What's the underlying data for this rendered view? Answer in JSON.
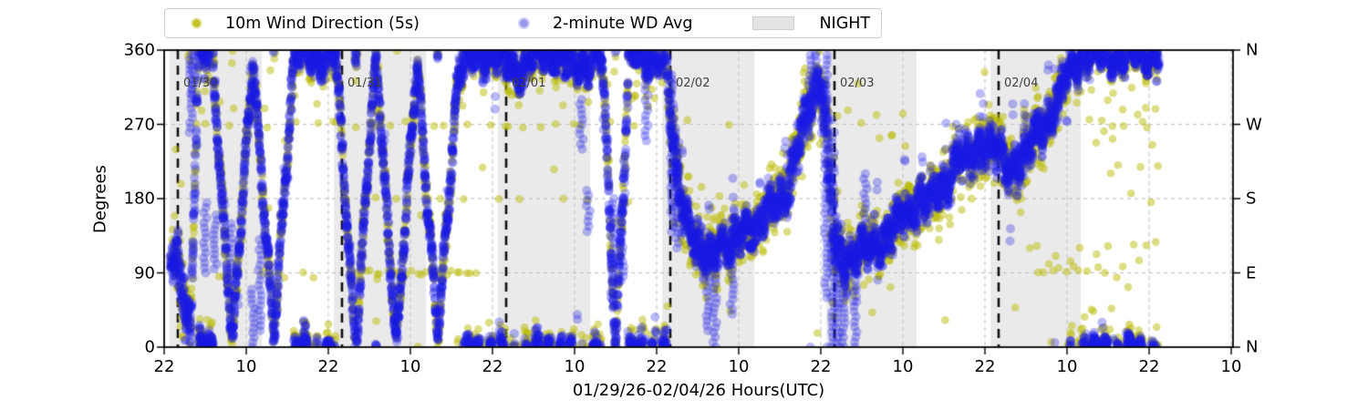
{
  "ui": {
    "legend": {
      "items": [
        {
          "label": "10m Wind Direction (5s)",
          "marker": "dot-icon",
          "color": "#c3c32a"
        },
        {
          "label": "2-minute WD Avg",
          "marker": "dot-icon",
          "color": "#9a9aea"
        },
        {
          "label": "NIGHT",
          "marker": "patch-icon",
          "color": "#e4e4e4"
        }
      ]
    }
  },
  "chart_data": {
    "type": "scatter",
    "title": "",
    "xlabel": "01/29/26-02/04/26  Hours(UTC)",
    "ylabel": "Degrees",
    "ylim": [
      0,
      360
    ],
    "xlim_hours": [
      0,
      156.3
    ],
    "grid": true,
    "legend_position": "top",
    "yticks": [
      {
        "deg": 0,
        "label": "0",
        "compass": "N"
      },
      {
        "deg": 90,
        "label": "90",
        "compass": "E"
      },
      {
        "deg": 180,
        "label": "180",
        "compass": "S"
      },
      {
        "deg": 270,
        "label": "270",
        "compass": "W"
      },
      {
        "deg": 360,
        "label": "360",
        "compass": "N"
      }
    ],
    "xticks": [
      {
        "h": 0,
        "label": "22"
      },
      {
        "h": 12,
        "label": "10"
      },
      {
        "h": 24,
        "label": "22"
      },
      {
        "h": 36,
        "label": "10"
      },
      {
        "h": 48,
        "label": "22"
      },
      {
        "h": 60,
        "label": "10"
      },
      {
        "h": 72,
        "label": "22"
      },
      {
        "h": 84,
        "label": "10"
      },
      {
        "h": 96,
        "label": "22"
      },
      {
        "h": 108,
        "label": "10"
      },
      {
        "h": 120,
        "label": "22"
      },
      {
        "h": 132,
        "label": "10"
      },
      {
        "h": 144,
        "label": "22"
      },
      {
        "h": 156,
        "label": "10"
      }
    ],
    "day_lines": [
      {
        "h": 2,
        "label": "01/30"
      },
      {
        "h": 26,
        "label": "01/31"
      },
      {
        "h": 50,
        "label": "02/01"
      },
      {
        "h": 74,
        "label": "02/02"
      },
      {
        "h": 98,
        "label": "02/03"
      },
      {
        "h": 122,
        "label": "02/04"
      }
    ],
    "night_bands_h": [
      [
        0.8,
        14.3
      ],
      [
        24.8,
        38.3
      ],
      [
        48.8,
        62.3
      ],
      [
        72.8,
        86.3
      ],
      [
        96.8,
        110.0
      ],
      [
        120.8,
        134.0
      ]
    ],
    "data_start_h": 0.9,
    "data_end_h": 145.4,
    "series": [
      {
        "name": "10m Wind Direction (5s)",
        "color_rgba": [
          187,
          187,
          8,
          0.5
        ],
        "interval_s": 150,
        "radius": 4.3,
        "sigma_mult": 0.55
      },
      {
        "name": "2-minute WD Avg",
        "color_rgba": [
          28,
          28,
          228,
          0.3
        ],
        "interval_s": 120,
        "radius": 5.0,
        "sigma_mult": 0.3
      }
    ],
    "direction_keyframes_h_deg_spread": [
      [
        0.9,
        105,
        40
      ],
      [
        2.0,
        100,
        45
      ],
      [
        3.0,
        55,
        50
      ],
      [
        3.8,
        20,
        40
      ],
      [
        5.0,
        352,
        35
      ],
      [
        7,
        356,
        25
      ],
      [
        10,
        4,
        22
      ],
      [
        13,
        354,
        22
      ],
      [
        16,
        6,
        24
      ],
      [
        19,
        358,
        22
      ],
      [
        22,
        350,
        24
      ],
      [
        25,
        356,
        22
      ],
      [
        28,
        2,
        22
      ],
      [
        31,
        354,
        24
      ],
      [
        34,
        0,
        22
      ],
      [
        37,
        352,
        22
      ],
      [
        40,
        4,
        24
      ],
      [
        43,
        340,
        30
      ],
      [
        45,
        350,
        24
      ],
      [
        48,
        356,
        22
      ],
      [
        50,
        345,
        26
      ],
      [
        52,
        338,
        30
      ],
      [
        54,
        350,
        24
      ],
      [
        56,
        358,
        22
      ],
      [
        58,
        350,
        24
      ],
      [
        60,
        340,
        30
      ],
      [
        62,
        348,
        26
      ],
      [
        64,
        356,
        24
      ],
      [
        66,
        2,
        26
      ],
      [
        68,
        354,
        26
      ],
      [
        70,
        348,
        28
      ],
      [
        72,
        352,
        26
      ],
      [
        73.4,
        345,
        30
      ],
      [
        74.3,
        250,
        65
      ],
      [
        75,
        205,
        50
      ],
      [
        76,
        170,
        45
      ],
      [
        77.3,
        130,
        40
      ],
      [
        78.6,
        105,
        35
      ],
      [
        80,
        115,
        35
      ],
      [
        81.3,
        135,
        35
      ],
      [
        82.6,
        115,
        35
      ],
      [
        84,
        135,
        35
      ],
      [
        85.3,
        150,
        35
      ],
      [
        86.6,
        140,
        35
      ],
      [
        88,
        160,
        35
      ],
      [
        89.3,
        175,
        35
      ],
      [
        90.6,
        185,
        38
      ],
      [
        92,
        220,
        40
      ],
      [
        93.3,
        260,
        40
      ],
      [
        94.6,
        300,
        40
      ],
      [
        95.6,
        330,
        40
      ],
      [
        96.6,
        290,
        80
      ],
      [
        97.6,
        150,
        70
      ],
      [
        98.6,
        110,
        45
      ],
      [
        100,
        105,
        40
      ],
      [
        101.5,
        115,
        38
      ],
      [
        103,
        120,
        35
      ],
      [
        105,
        130,
        35
      ],
      [
        107,
        148,
        35
      ],
      [
        109,
        163,
        35
      ],
      [
        110.5,
        185,
        35
      ],
      [
        112,
        175,
        35
      ],
      [
        114,
        195,
        38
      ],
      [
        116,
        232,
        40
      ],
      [
        117.5,
        222,
        38
      ],
      [
        119,
        240,
        38
      ],
      [
        120.5,
        252,
        38
      ],
      [
        122,
        235,
        38
      ],
      [
        123.5,
        215,
        38
      ],
      [
        125,
        225,
        38
      ],
      [
        127,
        250,
        38
      ],
      [
        129,
        275,
        38
      ],
      [
        131,
        305,
        38
      ],
      [
        132.5,
        338,
        30
      ],
      [
        134,
        352,
        22
      ],
      [
        135,
        358,
        20
      ],
      [
        136.5,
        352,
        18
      ],
      [
        138,
        354,
        18
      ],
      [
        140,
        350,
        18
      ],
      [
        142,
        355,
        18
      ],
      [
        144,
        352,
        18
      ],
      [
        145.4,
        350,
        18
      ]
    ],
    "outlier_rows_deg": [
      {
        "deg": 270,
        "h0": 6,
        "h1": 69,
        "n": 30,
        "jit": 4
      },
      {
        "deg": 180,
        "h0": 24,
        "h1": 70,
        "n": 10,
        "jit": 4
      },
      {
        "deg": 90,
        "h0": 27,
        "h1": 46,
        "n": 26,
        "jit": 3
      },
      {
        "deg": 88,
        "h0": 5,
        "h1": 24,
        "n": 6,
        "jit": 4
      },
      {
        "deg": 300,
        "h0": 10,
        "h1": 24,
        "n": 4,
        "jit": 12
      },
      {
        "deg": 320,
        "h0": 50,
        "h1": 70,
        "n": 8,
        "jit": 20
      },
      {
        "deg": 260,
        "h0": 96.5,
        "h1": 109,
        "n": 8,
        "jit": 30
      },
      {
        "deg": 195,
        "h0": 118,
        "h1": 126,
        "n": 5,
        "jit": 15
      },
      {
        "deg": 105,
        "h0": 126.5,
        "h1": 135,
        "n": 14,
        "jit": 18
      },
      {
        "deg": 100,
        "h0": 136,
        "h1": 145,
        "n": 10,
        "jit": 28
      },
      {
        "deg": 230,
        "h0": 135,
        "h1": 145,
        "n": 7,
        "jit": 45
      },
      {
        "deg": 35,
        "h0": 134.5,
        "h1": 139,
        "n": 7,
        "jit": 15
      },
      {
        "deg": 270,
        "h0": 134,
        "h1": 145,
        "n": 6,
        "jit": 8
      },
      {
        "deg": 300,
        "h0": 134,
        "h1": 145,
        "n": 8,
        "jit": 15
      }
    ],
    "avg_streaks_h_lo_hi": [
      [
        3.9,
        260,
        360
      ],
      [
        4.3,
        300,
        358
      ],
      [
        6,
        90,
        175
      ],
      [
        7.5,
        95,
        160
      ],
      [
        9.7,
        90,
        150
      ],
      [
        13,
        0,
        70
      ],
      [
        14,
        20,
        130
      ],
      [
        61,
        240,
        300
      ],
      [
        62,
        140,
        190
      ],
      [
        65.5,
        60,
        180
      ],
      [
        67,
        80,
        180
      ],
      [
        70.5,
        250,
        330
      ],
      [
        74.3,
        140,
        330
      ],
      [
        75,
        120,
        260
      ],
      [
        79.5,
        20,
        120
      ],
      [
        80.5,
        0,
        95
      ],
      [
        83,
        40,
        130
      ],
      [
        94.5,
        280,
        360
      ],
      [
        96.8,
        60,
        360
      ],
      [
        97.8,
        0,
        260
      ],
      [
        98.5,
        0,
        130
      ],
      [
        99.3,
        0,
        100
      ],
      [
        101,
        0,
        80
      ],
      [
        102.5,
        150,
        210
      ],
      [
        116,
        230,
        270
      ],
      [
        134.8,
        0,
        16
      ],
      [
        135.5,
        0,
        12
      ],
      [
        136.2,
        0,
        18
      ]
    ],
    "colors": {
      "night_band": "#eaeaea",
      "grid": "#c4c4c4",
      "day_line": "#111111",
      "frame": "#000000",
      "day_label": "#3f3f3f"
    }
  }
}
